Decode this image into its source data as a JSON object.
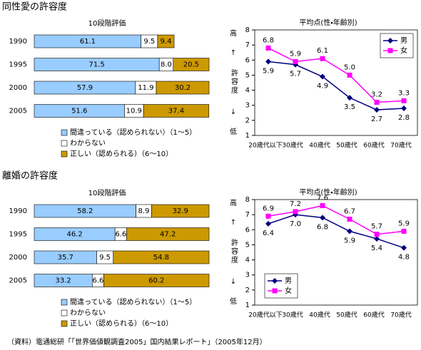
{
  "headings": [
    "同性愛の許容度",
    "離婚の許容度"
  ],
  "source": "（資料）電通総研「「世界価値観調査2005」国内結果レポート」（2005年12月）",
  "chart_data": [
    {
      "type": "stacked-bar",
      "orientation": "horizontal",
      "title": "10段階評価",
      "categories": [
        "1990",
        "1995",
        "2000",
        "2005"
      ],
      "xlim": [
        0,
        100
      ],
      "series": [
        {
          "name": "間違っている（認められない）（1～5）",
          "color": "#99ccff",
          "values": [
            61.1,
            71.5,
            57.9,
            51.6
          ]
        },
        {
          "name": "わからない",
          "color": "#ffffff",
          "values": [
            9.5,
            8.0,
            11.9,
            10.9
          ],
          "value_labels": [
            "9.5",
            "8.0",
            "11.9",
            "10.9"
          ]
        },
        {
          "name": "正しい（認められる）（6～10）",
          "color": "#cc9900",
          "values": [
            9.4,
            20.5,
            30.2,
            37.4
          ]
        }
      ]
    },
    {
      "type": "line",
      "title": "平均点(性・年齢別)",
      "categories": [
        "20歳代以下",
        "30歳代",
        "40歳代",
        "50歳代",
        "60歳代",
        "70歳代"
      ],
      "ylim": [
        1,
        8
      ],
      "yticks": [
        1,
        2,
        3,
        4,
        5,
        6,
        7,
        8
      ],
      "legend": "top-right",
      "annotations": [
        "高",
        "↑",
        "許容度",
        "↓",
        "低"
      ],
      "series": [
        {
          "name": "男",
          "color": "#000080",
          "marker": "diamond",
          "values": [
            5.9,
            5.7,
            4.9,
            3.5,
            2.7,
            2.8
          ]
        },
        {
          "name": "女",
          "color": "#ff00ff",
          "marker": "square",
          "values": [
            6.8,
            5.9,
            6.1,
            5.0,
            3.2,
            3.3
          ],
          "value_labels": [
            "6.8",
            "5.9",
            "6.1",
            "5.0",
            "3.2",
            "3.3"
          ]
        }
      ]
    },
    {
      "type": "stacked-bar",
      "orientation": "horizontal",
      "title": "10段階評価",
      "categories": [
        "1990",
        "1995",
        "2000",
        "2005"
      ],
      "xlim": [
        0,
        100
      ],
      "series": [
        {
          "name": "間違っている（認められない）（1～5）",
          "color": "#99ccff",
          "values": [
            58.2,
            46.2,
            35.7,
            33.2
          ]
        },
        {
          "name": "わからない",
          "color": "#ffffff",
          "values": [
            8.9,
            6.6,
            9.5,
            6.6
          ]
        },
        {
          "name": "正しい（認められる）（6～10）",
          "color": "#cc9900",
          "values": [
            32.9,
            47.2,
            54.8,
            60.2
          ]
        }
      ]
    },
    {
      "type": "line",
      "title": "平均点(性・年齢別)",
      "categories": [
        "20歳代以下",
        "30歳代",
        "40歳代",
        "50歳代",
        "60歳代",
        "70歳代"
      ],
      "ylim": [
        1,
        8
      ],
      "yticks": [
        1,
        2,
        3,
        4,
        5,
        6,
        7,
        8
      ],
      "legend": "bottom-left",
      "annotations": [
        "高",
        "↑",
        "許容度",
        "↓",
        "低"
      ],
      "series": [
        {
          "name": "男",
          "color": "#000080",
          "marker": "diamond",
          "values": [
            6.4,
            7.0,
            6.8,
            5.9,
            5.4,
            4.8
          ],
          "value_labels": [
            "6.4",
            "7.0",
            "6.8",
            "5.9",
            "5.4",
            "4.8"
          ]
        },
        {
          "name": "女",
          "color": "#ff00ff",
          "marker": "square",
          "values": [
            6.9,
            7.2,
            7.6,
            6.7,
            5.7,
            5.9
          ]
        }
      ]
    }
  ]
}
